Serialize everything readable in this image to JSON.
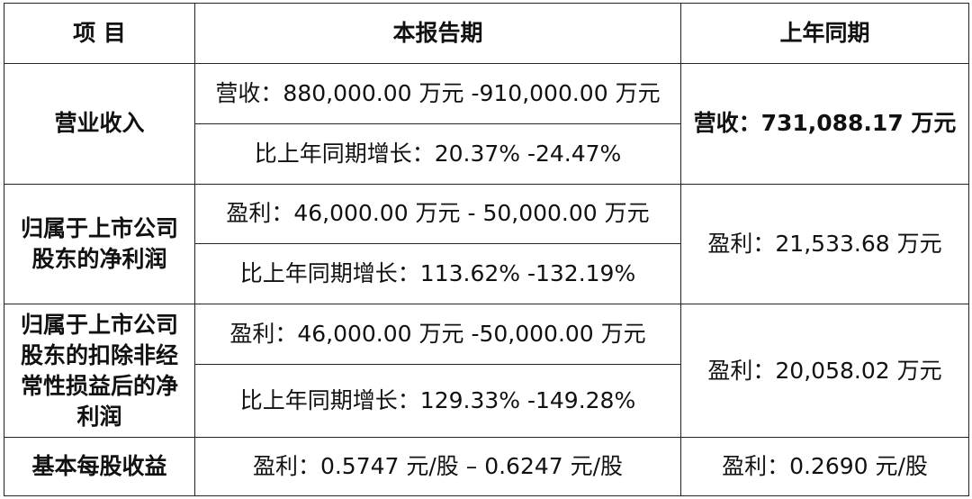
{
  "header": {
    "item": "项 目",
    "current": "本报告期",
    "prior": "上年同期"
  },
  "rows": [
    {
      "label": "营业收入",
      "current": [
        "营收：880,000.00 万元  -910,000.00 万元",
        "比上年同期增长：20.37% -24.47%"
      ],
      "prior": "营收：731,088.17 万元"
    },
    {
      "label": "归属于上市公司股东的净利润",
      "current": [
        "盈利：46,000.00 万元  - 50,000.00 万元",
        "比上年同期增长：113.62% -132.19%"
      ],
      "prior": "盈利：21,533.68 万元"
    },
    {
      "label": "归属于上市公司股东的扣除非经常性损益后的净利润",
      "current": [
        "盈利：46,000.00 万元  -50,000.00 万元",
        "比上年同期增长：129.33% -149.28%"
      ],
      "prior": "盈利：20,058.02 万元"
    },
    {
      "label": "基本每股收益",
      "current": [
        "盈利：0.5747 元/股 – 0.6247 元/股"
      ],
      "prior": "盈利：0.2690 元/股"
    }
  ]
}
